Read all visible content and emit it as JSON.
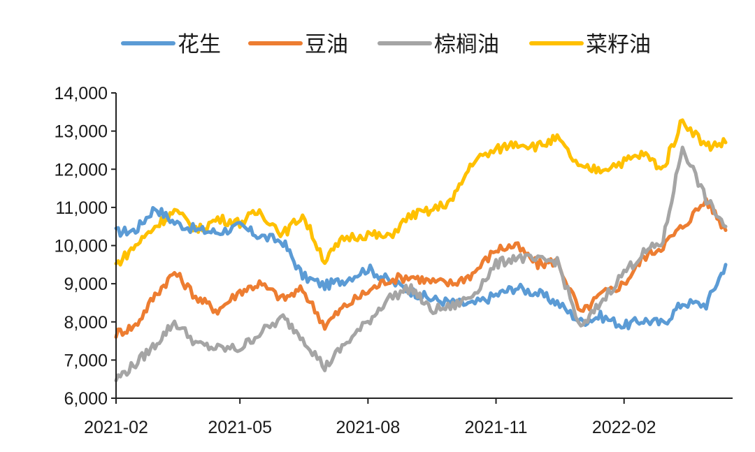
{
  "chart_data": {
    "type": "line",
    "title": "",
    "xlabel": "",
    "ylabel": "",
    "ylim": [
      6000,
      14000
    ],
    "y_ticks": [
      "6,000",
      "7,000",
      "8,000",
      "9,000",
      "10,000",
      "11,000",
      "12,000",
      "13,000",
      "14,000"
    ],
    "x_ticks": [
      "2021-02",
      "2021-05",
      "2021-08",
      "2021-11",
      "2022-02"
    ],
    "x": [
      "2021-02-01",
      "2021-02-15",
      "2021-03-01",
      "2021-03-15",
      "2021-04-01",
      "2021-04-15",
      "2021-05-01",
      "2021-05-15",
      "2021-06-01",
      "2021-06-15",
      "2021-07-01",
      "2021-07-15",
      "2021-08-01",
      "2021-08-15",
      "2021-09-01",
      "2021-09-15",
      "2021-10-01",
      "2021-10-15",
      "2021-11-01",
      "2021-11-15",
      "2021-12-01",
      "2021-12-15",
      "2022-01-01",
      "2022-01-15",
      "2022-02-01",
      "2022-02-15",
      "2022-03-01",
      "2022-03-15",
      "2022-04-01",
      "2022-04-15"
    ],
    "legend_position": "top",
    "grid": false,
    "series": [
      {
        "name": "花生",
        "color": "#5b9bd5",
        "values": [
          10350,
          10400,
          11000,
          10600,
          10400,
          10350,
          10500,
          10250,
          10100,
          9200,
          8950,
          9100,
          9400,
          9100,
          8800,
          8600,
          8500,
          8450,
          8700,
          8900,
          8750,
          8500,
          8000,
          8150,
          7900,
          8050,
          7950,
          8500,
          8450,
          9500
        ]
      },
      {
        "name": "豆油",
        "color": "#ed7d31",
        "values": [
          7700,
          7900,
          8700,
          9300,
          8600,
          8300,
          8800,
          9000,
          8600,
          8850,
          7900,
          8400,
          8800,
          9100,
          9200,
          9050,
          9000,
          9250,
          9900,
          10000,
          9500,
          9600,
          8200,
          8700,
          9000,
          9700,
          10000,
          10500,
          11200,
          10400
        ]
      },
      {
        "name": "棕榈油",
        "color": "#a5a5a5",
        "values": [
          6500,
          6900,
          7400,
          8000,
          7400,
          7300,
          7300,
          7700,
          8100,
          7600,
          6800,
          7400,
          8000,
          8600,
          8900,
          8300,
          8400,
          8700,
          9500,
          9700,
          9600,
          9600,
          7800,
          8500,
          9300,
          9800,
          10100,
          12600,
          11200,
          10500
        ]
      },
      {
        "name": "菜籽油",
        "color": "#ffc000",
        "values": [
          9500,
          10000,
          10500,
          10900,
          10400,
          10700,
          10600,
          10900,
          10300,
          10800,
          9600,
          10200,
          10300,
          10200,
          10800,
          10900,
          11200,
          12200,
          12500,
          12700,
          12600,
          12800,
          12000,
          12000,
          12200,
          12400,
          12000,
          13300,
          12600,
          12700
        ]
      }
    ]
  }
}
